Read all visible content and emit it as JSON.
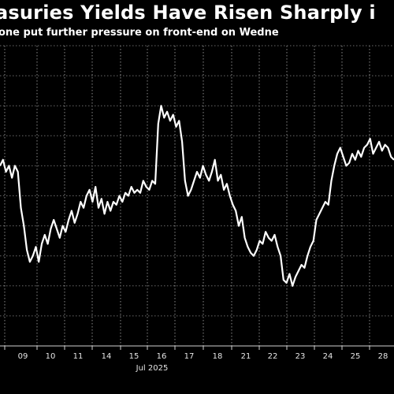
{
  "chart_data": {
    "type": "line",
    "title": "asuries Yields Have Risen Sharply i",
    "subtitle": "one put further pressure on front-end on Wedne",
    "xlabel": "",
    "ylabel": "",
    "x_tick_labels": [
      "09",
      "10",
      "11",
      "14",
      "15",
      "16",
      "17",
      "18",
      "21",
      "22",
      "23",
      "24",
      "25",
      "28"
    ],
    "month_label": "Jul 2025",
    "grid": true,
    "y_range": [
      0,
      100
    ],
    "series": [
      {
        "values": [
          60,
          62,
          58,
          60,
          56,
          60,
          58,
          46,
          40,
          32,
          28,
          30,
          33,
          28,
          34,
          37,
          34,
          39,
          42,
          39,
          36,
          40,
          38,
          42,
          45,
          41,
          44,
          48,
          46,
          50,
          52,
          48,
          53,
          46,
          49,
          44,
          48,
          45,
          48,
          47,
          50,
          48,
          51,
          50,
          53,
          51,
          52,
          51,
          55,
          53,
          52,
          55,
          54,
          74,
          80,
          76,
          78,
          75,
          77,
          73,
          75,
          68,
          55,
          50,
          52,
          55,
          58,
          56,
          60,
          57,
          55,
          58,
          62,
          55,
          57,
          52,
          54,
          50,
          47,
          45,
          40,
          43,
          36,
          33,
          31,
          30,
          32,
          35,
          34,
          38,
          36,
          35,
          37,
          33,
          30,
          22,
          21,
          24,
          20,
          23,
          25,
          27,
          26,
          30,
          33,
          35,
          42,
          44,
          46,
          48,
          47,
          55,
          60,
          64,
          66,
          63,
          60,
          61,
          64,
          62,
          65,
          63,
          66,
          67,
          69,
          64,
          66,
          68,
          65,
          67,
          66,
          63,
          62
        ]
      }
    ]
  }
}
